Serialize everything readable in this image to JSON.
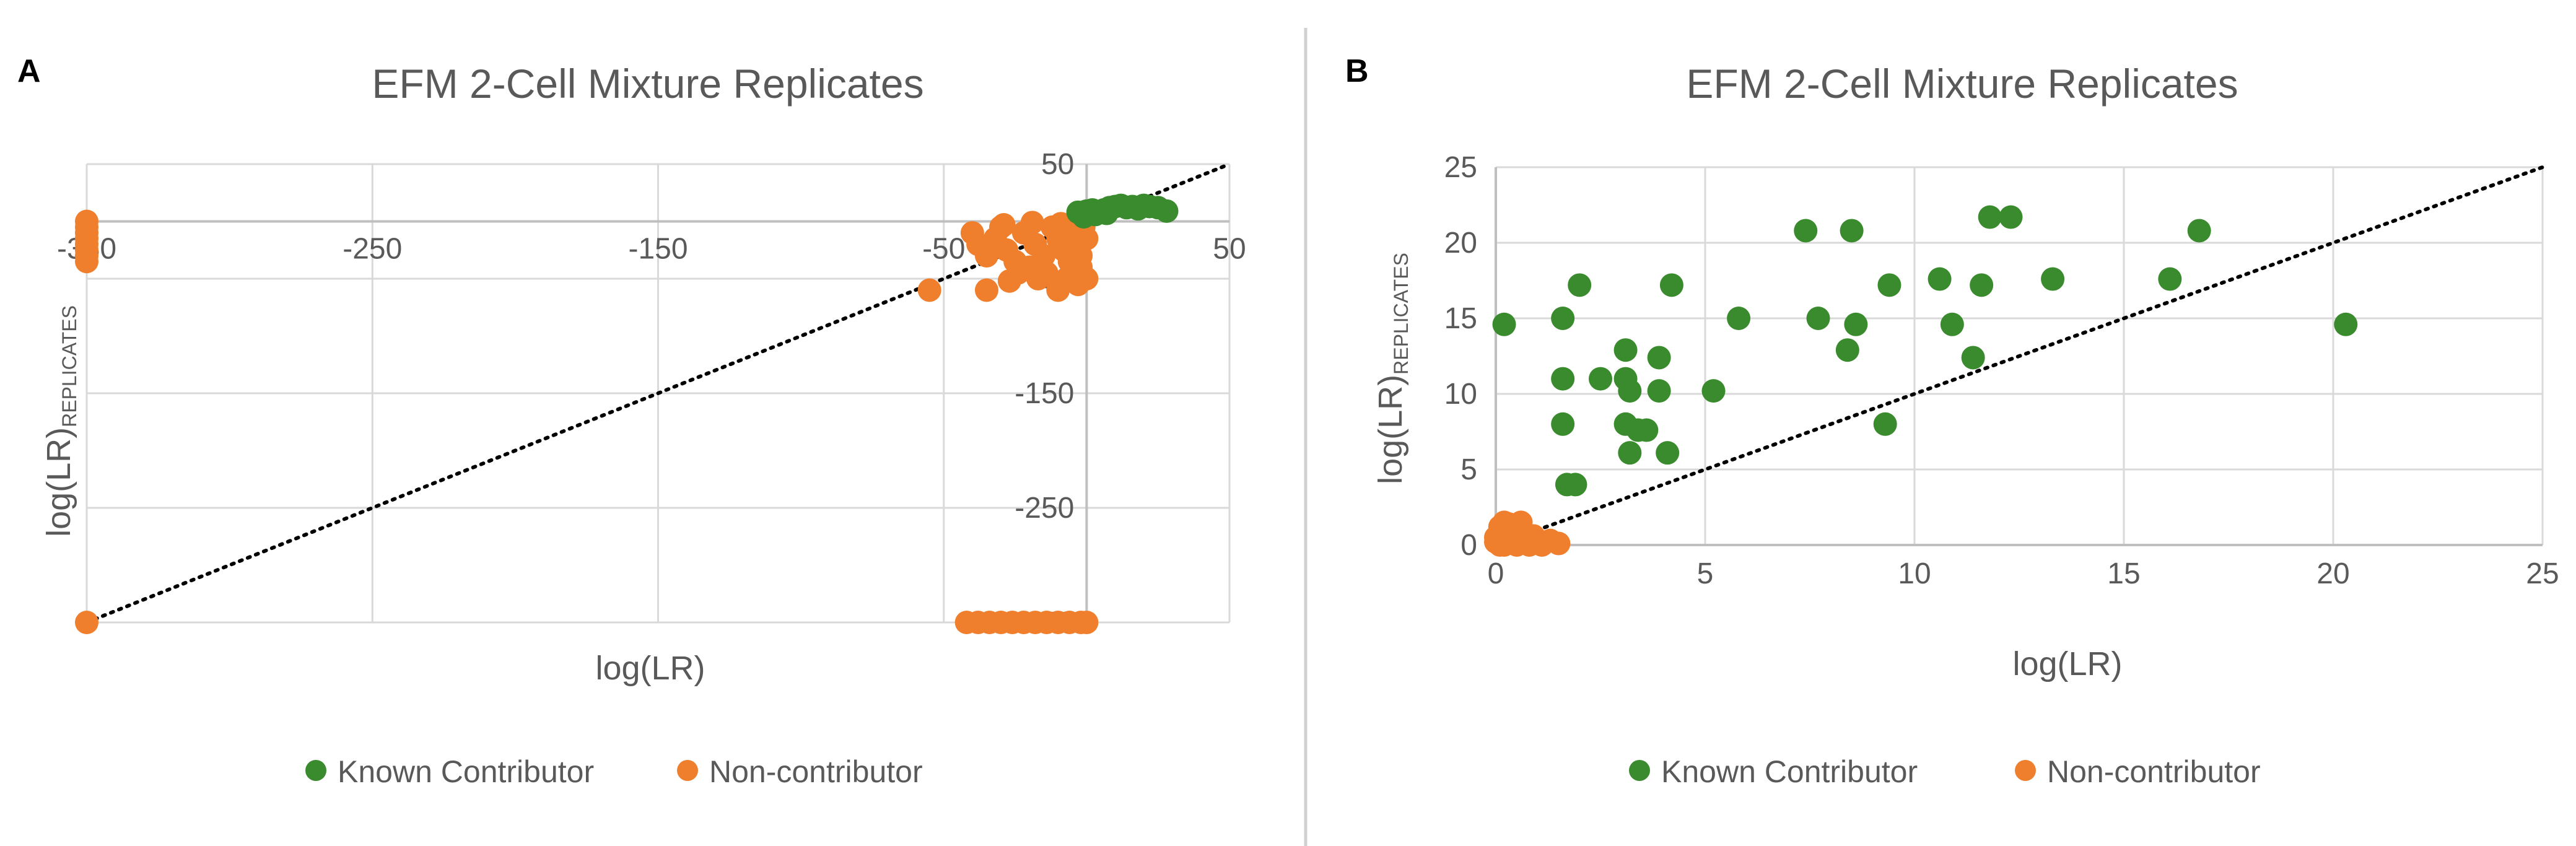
{
  "colors": {
    "known": "#3a8a2e",
    "noncontrib": "#f07f2d",
    "grid": "#d9d9d9",
    "axis": "#bfbfbf",
    "text": "#595959",
    "title": "#595959",
    "divider": "#d0d0d0"
  },
  "legend": {
    "known_label": "Known Contributor",
    "noncontrib_label": "Non-contributor"
  },
  "chart_data": [
    {
      "panel_label": "A",
      "type": "scatter",
      "title": "EFM 2-Cell Mixture Replicates",
      "xlabel": "log(LR)",
      "ylabel_main": "log(LR)",
      "ylabel_sub": "REPLICATES",
      "xlim": [
        -350,
        50
      ],
      "ylim": [
        -350,
        50
      ],
      "x_ticks": [
        -350,
        -250,
        -150,
        -50,
        50
      ],
      "y_ticks": [
        -350,
        -250,
        -150,
        -50,
        50
      ],
      "x_tick_labels": [
        "-350",
        "-250",
        "-150",
        "-50",
        "50"
      ],
      "y_tick_labels": [
        "-350",
        "-250",
        "-150",
        "-50",
        "50"
      ],
      "legend_position": "bottom",
      "reference_line": [
        [
          -350,
          -350
        ],
        [
          50,
          50
        ]
      ],
      "series": [
        {
          "name": "Known Contributor",
          "points": [
            [
              -3,
              8
            ],
            [
              0,
              9
            ],
            [
              2,
              10
            ],
            [
              4,
              8
            ],
            [
              6,
              10
            ],
            [
              8,
              12
            ],
            [
              10,
              13
            ],
            [
              12,
              14
            ],
            [
              14,
              12
            ],
            [
              16,
              13
            ],
            [
              18,
              11
            ],
            [
              20,
              14
            ],
            [
              22,
              13
            ],
            [
              25,
              12
            ],
            [
              28,
              9
            ],
            [
              -1,
              4
            ],
            [
              3,
              6
            ],
            [
              7,
              7
            ]
          ]
        },
        {
          "name": "Non-contributor",
          "points": [
            [
              -350,
              0
            ],
            [
              -350,
              -5
            ],
            [
              -350,
              -10
            ],
            [
              -350,
              -15
            ],
            [
              -350,
              -20
            ],
            [
              -350,
              -25
            ],
            [
              -350,
              -30
            ],
            [
              -350,
              -35
            ],
            [
              -350,
              -350
            ],
            [
              -40,
              -10
            ],
            [
              -38,
              -20
            ],
            [
              -35,
              -30
            ],
            [
              -32,
              -15
            ],
            [
              -30,
              -5
            ],
            [
              -28,
              -25
            ],
            [
              -25,
              -35
            ],
            [
              -22,
              -10
            ],
            [
              -20,
              -40
            ],
            [
              -18,
              -20
            ],
            [
              -15,
              -30
            ],
            [
              -12,
              -5
            ],
            [
              -10,
              -15
            ],
            [
              -8,
              -25
            ],
            [
              -6,
              -35
            ],
            [
              -5,
              -10
            ],
            [
              -3,
              -20
            ],
            [
              -2,
              -30
            ],
            [
              0,
              -15
            ],
            [
              -1,
              -5
            ],
            [
              -4,
              -45
            ],
            [
              -14,
              -45
            ],
            [
              -24,
              -45
            ],
            [
              -7,
              -50
            ],
            [
              -17,
              -50
            ],
            [
              -27,
              -52
            ],
            [
              -55,
              -60
            ],
            [
              -35,
              -60
            ],
            [
              -10,
              -60
            ],
            [
              0,
              -50
            ],
            [
              -2,
              -40
            ],
            [
              -3,
              -55
            ],
            [
              -9,
              -2
            ],
            [
              -19,
              -1
            ],
            [
              -29,
              -3
            ],
            [
              -42,
              -350
            ],
            [
              -38,
              -350
            ],
            [
              -34,
              -350
            ],
            [
              -30,
              -350
            ],
            [
              -26,
              -350
            ],
            [
              -22,
              -350
            ],
            [
              -18,
              -350
            ],
            [
              -14,
              -350
            ],
            [
              -10,
              -350
            ],
            [
              -6,
              -350
            ],
            [
              -2,
              -350
            ],
            [
              0,
              -350
            ]
          ]
        }
      ]
    },
    {
      "panel_label": "B",
      "type": "scatter",
      "title": "EFM 2-Cell Mixture Replicates",
      "xlabel": "log(LR)",
      "ylabel_main": "log(LR)",
      "ylabel_sub": "REPLICATES",
      "xlim": [
        0,
        25
      ],
      "ylim": [
        0,
        25
      ],
      "x_ticks": [
        0,
        5,
        10,
        15,
        20,
        25
      ],
      "y_ticks": [
        0,
        5,
        10,
        15,
        20,
        25
      ],
      "x_tick_labels": [
        "0",
        "5",
        "10",
        "15",
        "20",
        "25"
      ],
      "y_tick_labels": [
        "0",
        "5",
        "10",
        "15",
        "20",
        "25"
      ],
      "legend_position": "bottom",
      "reference_line": [
        [
          0,
          0
        ],
        [
          25,
          25
        ]
      ],
      "series": [
        {
          "name": "Known Contributor",
          "points": [
            [
              0.2,
              14.6
            ],
            [
              1.6,
              15.0
            ],
            [
              1.6,
              11.0
            ],
            [
              1.6,
              8.0
            ],
            [
              1.7,
              4.0
            ],
            [
              1.9,
              4.0
            ],
            [
              2.0,
              17.2
            ],
            [
              2.5,
              11.0
            ],
            [
              3.1,
              12.9
            ],
            [
              3.1,
              11.0
            ],
            [
              3.2,
              10.2
            ],
            [
              3.1,
              8.0
            ],
            [
              3.2,
              6.1
            ],
            [
              3.4,
              7.6
            ],
            [
              3.6,
              7.6
            ],
            [
              3.9,
              12.4
            ],
            [
              3.9,
              10.2
            ],
            [
              4.1,
              6.1
            ],
            [
              4.2,
              17.2
            ],
            [
              5.2,
              10.2
            ],
            [
              5.8,
              15.0
            ],
            [
              7.4,
              20.8
            ],
            [
              7.7,
              15.0
            ],
            [
              8.4,
              12.9
            ],
            [
              8.5,
              20.8
            ],
            [
              8.6,
              14.6
            ],
            [
              9.3,
              8.0
            ],
            [
              9.4,
              17.2
            ],
            [
              10.6,
              17.6
            ],
            [
              10.9,
              14.6
            ],
            [
              11.4,
              12.4
            ],
            [
              11.6,
              17.2
            ],
            [
              11.8,
              21.7
            ],
            [
              12.3,
              21.7
            ],
            [
              13.3,
              17.6
            ],
            [
              16.1,
              17.6
            ],
            [
              16.8,
              20.8
            ],
            [
              20.3,
              14.6
            ]
          ]
        },
        {
          "name": "Non-contributor",
          "points": [
            [
              0.0,
              0.2
            ],
            [
              0.0,
              0.5
            ],
            [
              0.1,
              0.9
            ],
            [
              0.1,
              1.2
            ],
            [
              0.2,
              0.0
            ],
            [
              0.3,
              0.6
            ],
            [
              0.3,
              1.4
            ],
            [
              0.4,
              0.2
            ],
            [
              0.5,
              1.0
            ],
            [
              0.5,
              0.0
            ],
            [
              0.6,
              1.5
            ],
            [
              0.7,
              0.3
            ],
            [
              0.8,
              0.0
            ],
            [
              0.9,
              0.6
            ],
            [
              1.0,
              0.2
            ],
            [
              1.1,
              0.0
            ],
            [
              1.3,
              0.3
            ],
            [
              1.5,
              0.1
            ],
            [
              0.2,
              1.5
            ],
            [
              0.1,
              0.0
            ]
          ]
        }
      ]
    }
  ]
}
